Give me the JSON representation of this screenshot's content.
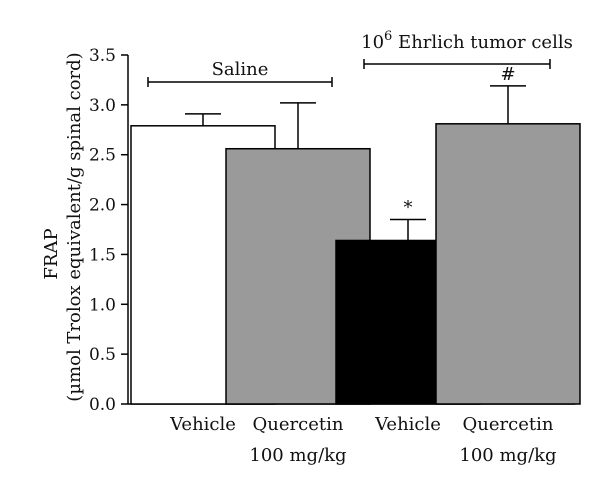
{
  "chart_data": {
    "type": "bar",
    "title": "",
    "ylabel_line1": "FRAP",
    "ylabel_line2": "(µmol Trolox equivalent/g spinal cord)",
    "ylim": [
      0,
      3.5
    ],
    "yticks": [
      0.0,
      0.5,
      1.0,
      1.5,
      2.0,
      2.5,
      3.0,
      3.5
    ],
    "ytick_labels": [
      "0.0",
      "0.5",
      "1.0",
      "1.5",
      "2.0",
      "2.5",
      "3.0",
      "3.5"
    ],
    "bars": [
      {
        "label_line1": "Vehicle",
        "label_line2": "",
        "value": 2.79,
        "error": 0.12,
        "fill": "#ffffff",
        "annotation": ""
      },
      {
        "label_line1": "Quercetin",
        "label_line2": "100 mg/kg",
        "value": 2.56,
        "error": 0.46,
        "fill": "#9a9a9a",
        "annotation": ""
      },
      {
        "label_line1": "Vehicle",
        "label_line2": "",
        "value": 1.64,
        "error": 0.21,
        "fill": "#000000",
        "annotation": "*"
      },
      {
        "label_line1": "Quercetin",
        "label_line2": "100 mg/kg",
        "value": 2.81,
        "error": 0.38,
        "fill": "#9a9a9a",
        "annotation": "#"
      }
    ],
    "groups": [
      {
        "label": "Saline",
        "label_sup": "",
        "label_suffix": "",
        "from": 0,
        "to": 1
      },
      {
        "label": "10",
        "label_sup": "6",
        "label_suffix": " Ehrlich tumor cells",
        "from": 2,
        "to": 3
      }
    ],
    "grid": false,
    "legend": "none"
  }
}
